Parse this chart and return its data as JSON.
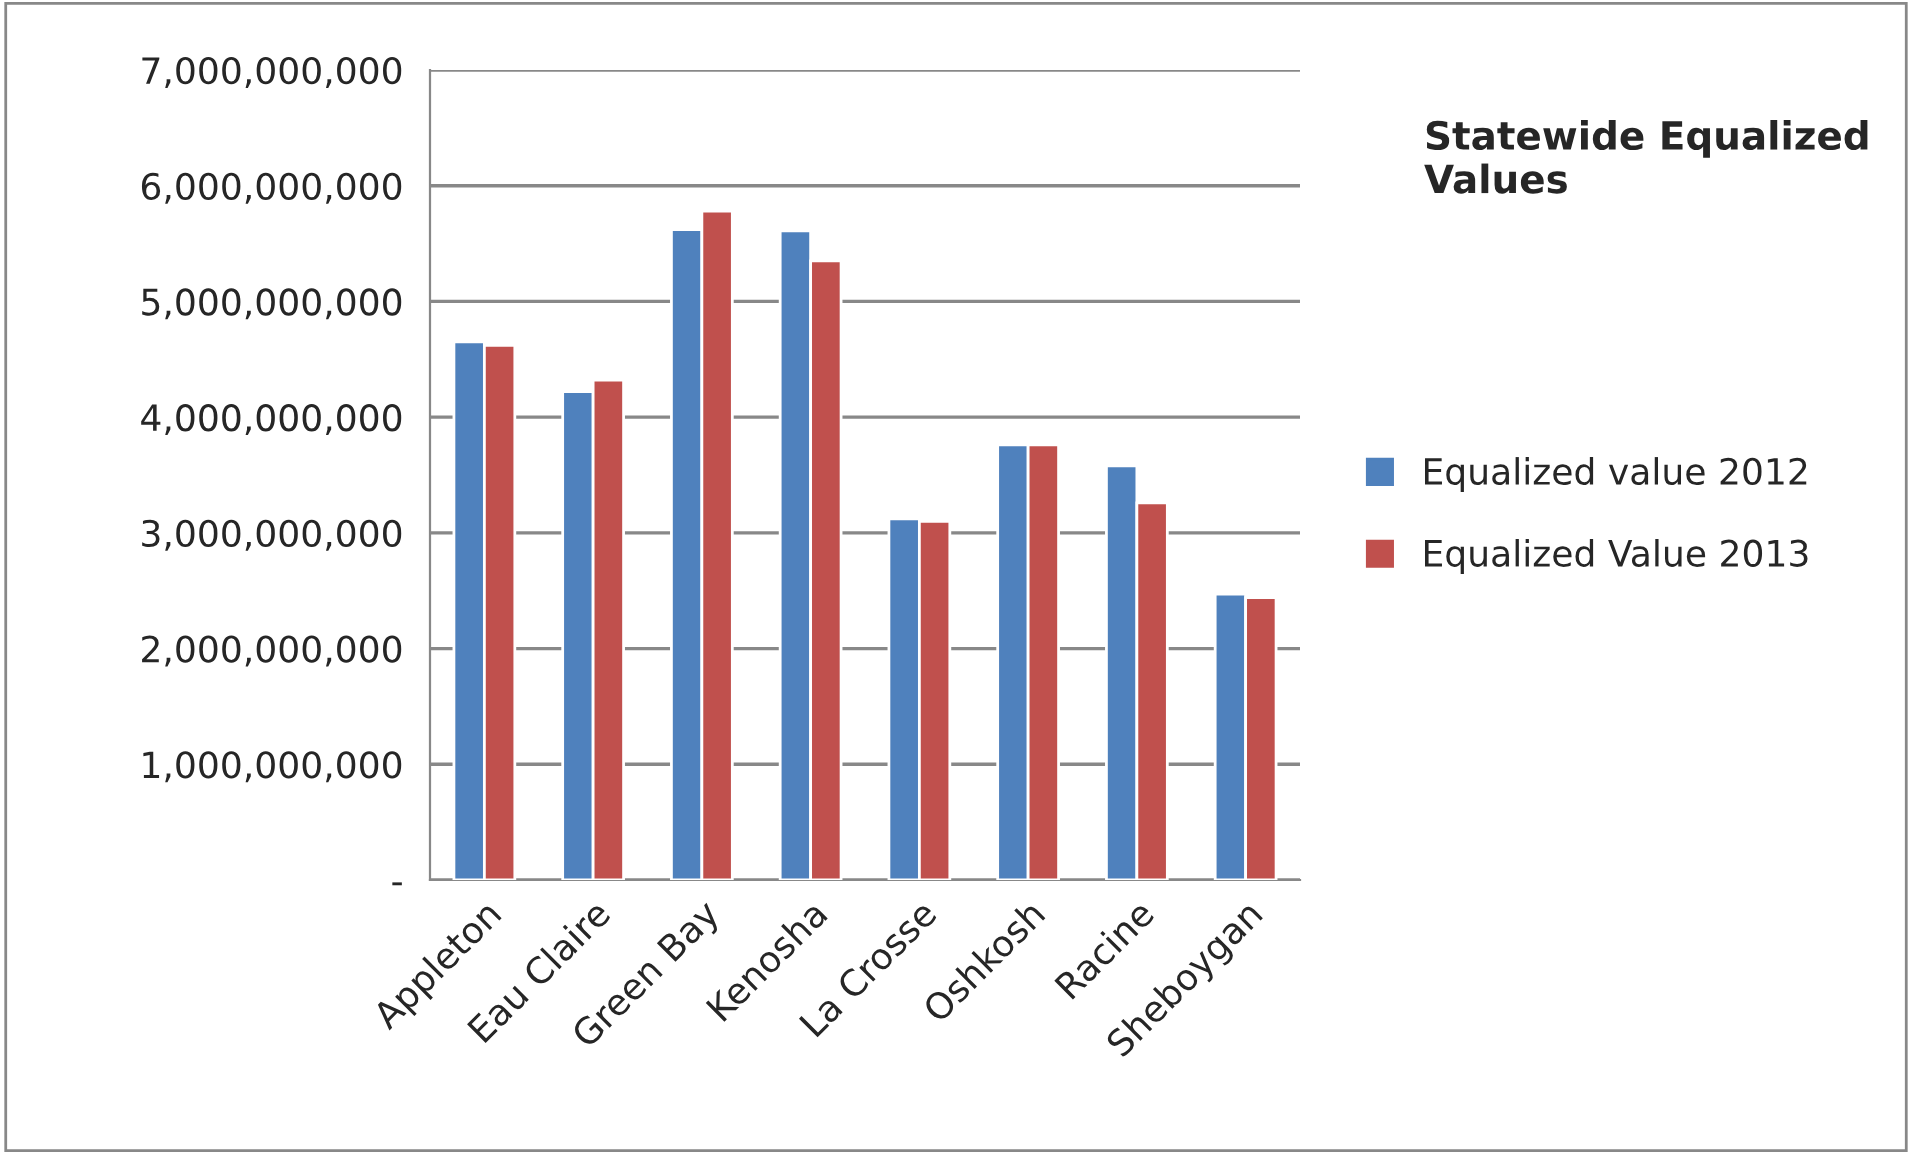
{
  "chart_data": {
    "type": "bar",
    "title": "Statewide Equalized Values",
    "categories": [
      "Appleton",
      "Eau Claire",
      "Green Bay",
      "Kenosha",
      "La Crosse",
      "Oshkosh",
      "Racine",
      "Sheboygan"
    ],
    "series": [
      {
        "name": "Equalized value 2012",
        "color": "#4f81bd",
        "values": [
          4650000000,
          4220000000,
          5620000000,
          5610000000,
          3120000000,
          3760000000,
          3580000000,
          2470000000
        ]
      },
      {
        "name": "Equalized Value 2013",
        "color": "#c0504d",
        "values": [
          4620000000,
          4320000000,
          5780000000,
          5350000000,
          3100000000,
          3760000000,
          3260000000,
          2440000000
        ]
      }
    ],
    "ylim": [
      0,
      7000000000
    ],
    "yticks": [
      {
        "value": 0,
        "label": "-"
      },
      {
        "value": 1000000000,
        "label": "1,000,000,000"
      },
      {
        "value": 2000000000,
        "label": "2,000,000,000"
      },
      {
        "value": 3000000000,
        "label": "3,000,000,000"
      },
      {
        "value": 4000000000,
        "label": "4,000,000,000"
      },
      {
        "value": 5000000000,
        "label": "5,000,000,000"
      },
      {
        "value": 6000000000,
        "label": "6,000,000,000"
      },
      {
        "value": 7000000000,
        "label": "7,000,000,000"
      }
    ],
    "grid": "y",
    "legend": "right"
  }
}
